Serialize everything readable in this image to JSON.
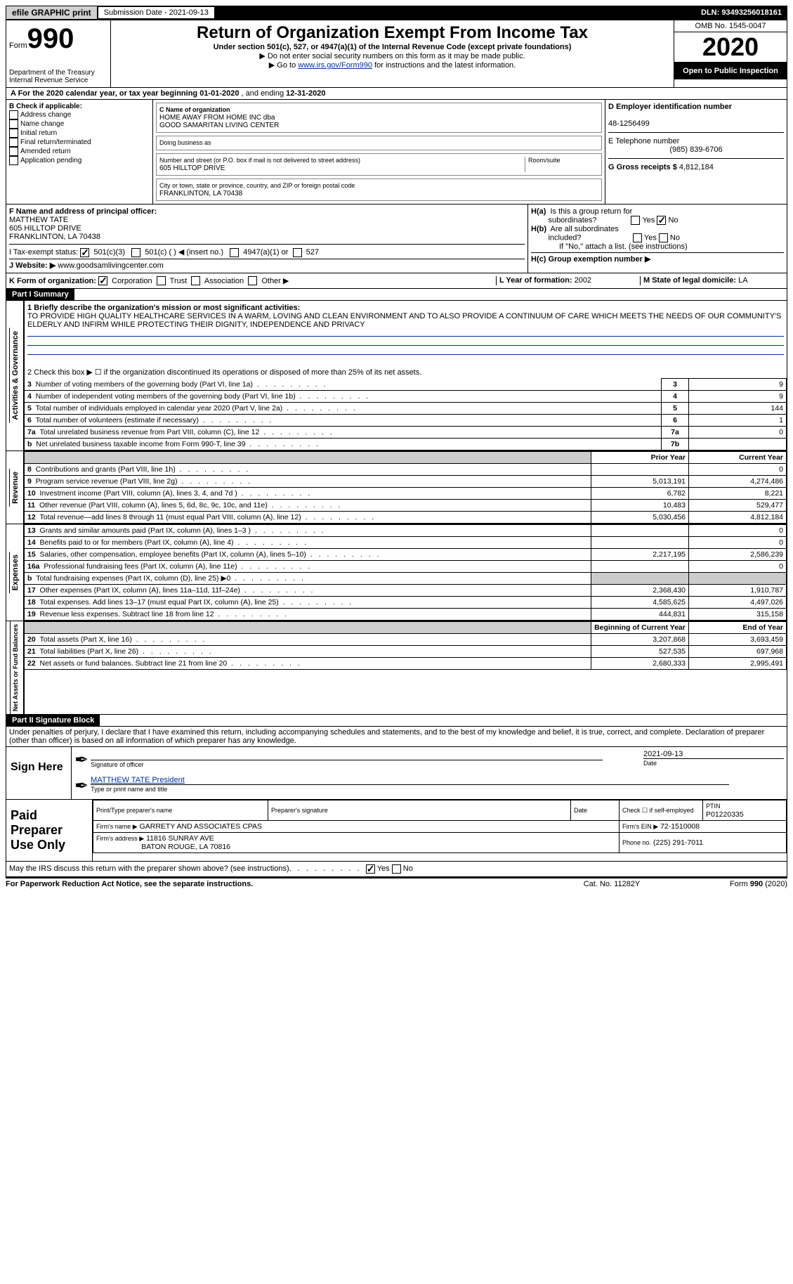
{
  "topbar": {
    "efile": "efile GRAPHIC print",
    "submission_label": "Submission Date - 2021-09-13",
    "dln": "DLN: 93493256018161"
  },
  "header": {
    "form_label": "Form",
    "form_num": "990",
    "dept": "Department of the Treasury\nInternal Revenue Service",
    "title": "Return of Organization Exempt From Income Tax",
    "subtitle": "Under section 501(c), 527, or 4947(a)(1) of the Internal Revenue Code (except private foundations)",
    "note1": "▶ Do not enter social security numbers on this form as it may be made public.",
    "note2_pre": "▶ Go to ",
    "note2_link": "www.irs.gov/Form990",
    "note2_post": " for instructions and the latest information.",
    "omb": "OMB No. 1545-0047",
    "year": "2020",
    "inspection": "Open to Public Inspection"
  },
  "period": {
    "text_a": "A For the 2020 calendar year, or tax year beginning ",
    "begin": "01-01-2020",
    "text_b": " , and ending ",
    "end": "12-31-2020"
  },
  "boxB": {
    "label": "B Check if applicable:",
    "items": [
      "Address change",
      "Name change",
      "Initial return",
      "Final return/terminated",
      "Amended return",
      "Application pending"
    ]
  },
  "boxC": {
    "name_label": "C Name of organization",
    "name": "HOME AWAY FROM HOME INC dba\nGOOD SAMARITAN LIVING CENTER",
    "dba_label": "Doing business as",
    "street_label": "Number and street (or P.O. box if mail is not delivered to street address)",
    "room_label": "Room/suite",
    "street": "605 HILLTOP DRIVE",
    "city_label": "City or town, state or province, country, and ZIP or foreign postal code",
    "city": "FRANKLINTON, LA  70438"
  },
  "boxD": {
    "label": "D Employer identification number",
    "ein": "48-1256499"
  },
  "boxE": {
    "label": "E Telephone number",
    "phone": "(985) 839-6706"
  },
  "boxG": {
    "label": "G Gross receipts $",
    "amount": "4,812,184"
  },
  "boxF": {
    "label": "F Name and address of principal officer:",
    "name": "MATTHEW TATE",
    "addr1": "605 HILLTOP DRIVE",
    "addr2": "FRANKLINTON, LA  70438"
  },
  "boxH": {
    "a_label": "H(a)  Is this a group return for subordinates?",
    "b_label": "H(b)  Are all subordinates included?",
    "b_note": "If \"No,\" attach a list. (see instructions)",
    "c_label": "H(c)  Group exemption number ▶",
    "yes": "Yes",
    "no": "No"
  },
  "boxI": {
    "label": "I   Tax-exempt status:",
    "o1": "501(c)(3)",
    "o2": "501(c) (  ) ◀ (insert no.)",
    "o3": "4947(a)(1) or",
    "o4": "527"
  },
  "boxJ": {
    "label": "J   Website: ▶",
    "url": "www.goodsamlivingcenter.com"
  },
  "boxK": {
    "label": "K Form of organization:",
    "corp": "Corporation",
    "trust": "Trust",
    "assoc": "Association",
    "other": "Other ▶"
  },
  "boxL": {
    "label": "L Year of formation:",
    "val": "2002"
  },
  "boxM": {
    "label": "M State of legal domicile:",
    "val": "LA"
  },
  "part1": {
    "header": "Part I      Summary",
    "vlabel1": "Activities & Governance",
    "l1_label": "1   Briefly describe the organization's mission or most significant activities:",
    "l1_text": "TO PROVIDE HIGH QUALITY HEALTHCARE SERVICES IN A WARM, LOVING AND CLEAN ENVIRONMENT AND TO ALSO PROVIDE A CONTINUUM OF CARE WHICH MEETS THE NEEDS OF OUR COMMUNITY'S ELDERLY AND INFIRM WHILE PROTECTING THEIR DIGNITY, INDEPENDENCE AND PRIVACY",
    "l2": "2   Check this box ▶ ☐  if the organization discontinued its operations or disposed of more than 25% of its net assets.",
    "lines": [
      {
        "n": "3",
        "label": "Number of voting members of the governing body (Part VI, line 1a)",
        "box": "3",
        "val": "9"
      },
      {
        "n": "4",
        "label": "Number of independent voting members of the governing body (Part VI, line 1b)",
        "box": "4",
        "val": "9"
      },
      {
        "n": "5",
        "label": "Total number of individuals employed in calendar year 2020 (Part V, line 2a)",
        "box": "5",
        "val": "144"
      },
      {
        "n": "6",
        "label": "Total number of volunteers (estimate if necessary)",
        "box": "6",
        "val": "1"
      },
      {
        "n": "7a",
        "label": "Total unrelated business revenue from Part VIII, column (C), line 12",
        "box": "7a",
        "val": "0"
      },
      {
        "n": "b",
        "label": "Net unrelated business taxable income from Form 990-T, line 39",
        "box": "7b",
        "val": ""
      }
    ],
    "vlabel2": "Revenue",
    "prior_hdr": "Prior Year",
    "current_hdr": "Current Year",
    "revenue": [
      {
        "n": "8",
        "label": "Contributions and grants (Part VIII, line 1h)",
        "prior": "",
        "cur": "0"
      },
      {
        "n": "9",
        "label": "Program service revenue (Part VIII, line 2g)",
        "prior": "5,013,191",
        "cur": "4,274,486"
      },
      {
        "n": "10",
        "label": "Investment income (Part VIII, column (A), lines 3, 4, and 7d )",
        "prior": "6,782",
        "cur": "8,221"
      },
      {
        "n": "11",
        "label": "Other revenue (Part VIII, column (A), lines 5, 6d, 8c, 9c, 10c, and 11e)",
        "prior": "10,483",
        "cur": "529,477"
      },
      {
        "n": "12",
        "label": "Total revenue—add lines 8 through 11 (must equal Part VIII, column (A), line 12)",
        "prior": "5,030,456",
        "cur": "4,812,184"
      }
    ],
    "vlabel3": "Expenses",
    "expenses": [
      {
        "n": "13",
        "label": "Grants and similar amounts paid (Part IX, column (A), lines 1–3 )",
        "prior": "",
        "cur": "0"
      },
      {
        "n": "14",
        "label": "Benefits paid to or for members (Part IX, column (A), line 4)",
        "prior": "",
        "cur": "0"
      },
      {
        "n": "15",
        "label": "Salaries, other compensation, employee benefits (Part IX, column (A), lines 5–10)",
        "prior": "2,217,195",
        "cur": "2,586,239"
      },
      {
        "n": "16a",
        "label": "Professional fundraising fees (Part IX, column (A), line 11e)",
        "prior": "",
        "cur": "0"
      },
      {
        "n": "b",
        "label": "Total fundraising expenses (Part IX, column (D), line 25) ▶0",
        "prior": "grey",
        "cur": "grey"
      },
      {
        "n": "17",
        "label": "Other expenses (Part IX, column (A), lines 11a–11d, 11f–24e)",
        "prior": "2,368,430",
        "cur": "1,910,787"
      },
      {
        "n": "18",
        "label": "Total expenses. Add lines 13–17 (must equal Part IX, column (A), line 25)",
        "prior": "4,585,625",
        "cur": "4,497,026"
      },
      {
        "n": "19",
        "label": "Revenue less expenses. Subtract line 18 from line 12",
        "prior": "444,831",
        "cur": "315,158"
      }
    ],
    "vlabel4": "Net Assets or Fund Balances",
    "begin_hdr": "Beginning of Current Year",
    "end_hdr": "End of Year",
    "netassets": [
      {
        "n": "20",
        "label": "Total assets (Part X, line 16)",
        "prior": "3,207,868",
        "cur": "3,693,459"
      },
      {
        "n": "21",
        "label": "Total liabilities (Part X, line 26)",
        "prior": "527,535",
        "cur": "697,968"
      },
      {
        "n": "22",
        "label": "Net assets or fund balances. Subtract line 21 from line 20",
        "prior": "2,680,333",
        "cur": "2,995,491"
      }
    ]
  },
  "part2": {
    "header": "Part II     Signature Block",
    "declaration": "Under penalties of perjury, I declare that I have examined this return, including accompanying schedules and statements, and to the best of my knowledge and belief, it is true, correct, and complete. Declaration of preparer (other than officer) is based on all information of which preparer has any knowledge.",
    "sign_here": "Sign Here",
    "sig_label": "Signature of officer",
    "date_label": "Date",
    "sig_date": "2021-09-13",
    "officer": "MATTHEW TATE President",
    "officer_label": "Type or print name and title",
    "paid": "Paid Preparer Use Only",
    "prep_name_label": "Print/Type preparer's name",
    "prep_sig_label": "Preparer's signature",
    "prep_date_label": "Date",
    "check_label": "Check ☐ if self-employed",
    "ptin_label": "PTIN",
    "ptin": "P01220335",
    "firm_name_label": "Firm's name     ▶",
    "firm_name": "GARRETY AND ASSOCIATES CPAS",
    "firm_ein_label": "Firm's EIN ▶",
    "firm_ein": "72-1510008",
    "firm_addr_label": "Firm's address ▶",
    "firm_addr1": "11816 SUNRAY AVE",
    "firm_addr2": "BATON ROUGE, LA  70816",
    "phone_label": "Phone no.",
    "phone": "(225) 291-7011",
    "discuss": "May the IRS discuss this return with the preparer shown above? (see instructions)",
    "yes": "Yes",
    "no": "No"
  },
  "footer": {
    "notice": "For Paperwork Reduction Act Notice, see the separate instructions.",
    "cat": "Cat. No. 11282Y",
    "form": "Form 990 (2020)"
  },
  "colors": {
    "black": "#000000",
    "white": "#ffffff",
    "grey": "#cccccc",
    "link": "#003399"
  }
}
